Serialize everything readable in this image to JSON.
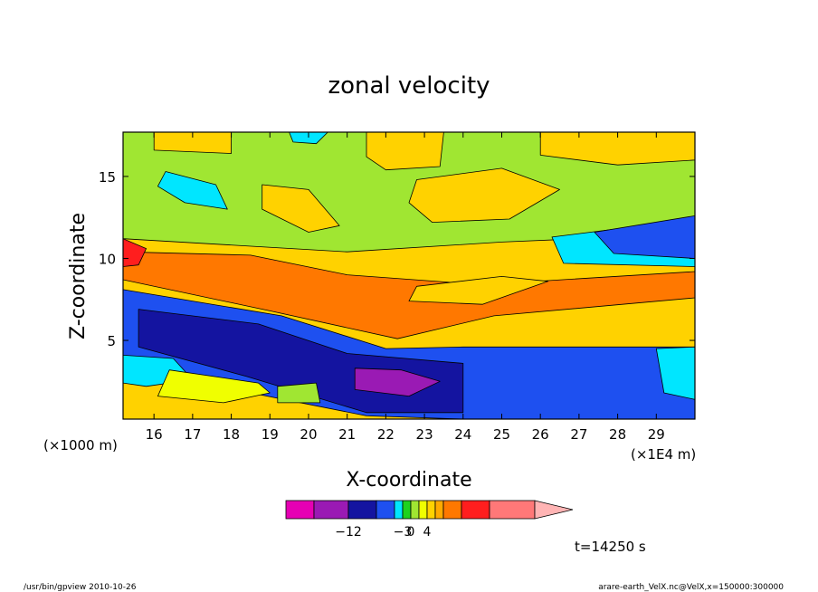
{
  "chart_data": {
    "type": "heatmap",
    "title": "zonal velocity",
    "xlabel": "X-coordinate",
    "ylabel": "Z-coordinate",
    "x_units_note": "(×1E4 m)",
    "y_units_note": "(×1000 m)",
    "xlim": [
      15.2,
      30.0
    ],
    "ylim": [
      0.2,
      17.7
    ],
    "x_ticks": [
      "16",
      "17",
      "18",
      "19",
      "20",
      "21",
      "22",
      "23",
      "24",
      "25",
      "26",
      "27",
      "28",
      "29"
    ],
    "y_ticks": [
      "5",
      "10",
      "15"
    ],
    "time_label": "t=14250 s",
    "colorbar": {
      "colors": [
        "#e600b4",
        "#9a1ab4",
        "#1414a0",
        "#1e50f0",
        "#00e6ff",
        "#1ed21e",
        "#a0e632",
        "#f0ff00",
        "#ffd200",
        "#ffaa00",
        "#ff7800",
        "#ff1e1e",
        "#ff7878",
        "#ffb4b4"
      ],
      "tick_labels": [
        "−12",
        "−3",
        "0",
        "4"
      ]
    },
    "regions": [
      {
        "level": 6,
        "points": [
          [
            15.2,
            17.7
          ],
          [
            30,
            17.7
          ],
          [
            30,
            11.5
          ],
          [
            25,
            11
          ],
          [
            21,
            10.4
          ],
          [
            15.2,
            11.2
          ]
        ]
      },
      {
        "level": 8,
        "points": [
          [
            16,
            17.7
          ],
          [
            18,
            17.7
          ],
          [
            18,
            16.4
          ],
          [
            16,
            16.6
          ]
        ]
      },
      {
        "level": 8,
        "points": [
          [
            21.5,
            17.7
          ],
          [
            23.5,
            17.7
          ],
          [
            23.4,
            15.6
          ],
          [
            22,
            15.4
          ],
          [
            21.5,
            16.2
          ]
        ]
      },
      {
        "level": 8,
        "points": [
          [
            26,
            17.7
          ],
          [
            30,
            17.7
          ],
          [
            30,
            16
          ],
          [
            28,
            15.7
          ],
          [
            26,
            16.3
          ]
        ]
      },
      {
        "level": 8,
        "points": [
          [
            18.8,
            14.5
          ],
          [
            20,
            14.2
          ],
          [
            20.8,
            12
          ],
          [
            20,
            11.6
          ],
          [
            18.8,
            13
          ]
        ]
      },
      {
        "level": 8,
        "points": [
          [
            22.8,
            14.8
          ],
          [
            25,
            15.5
          ],
          [
            26.5,
            14.2
          ],
          [
            25.2,
            12.4
          ],
          [
            23.2,
            12.2
          ],
          [
            22.6,
            13.4
          ]
        ]
      },
      {
        "level": 4,
        "points": [
          [
            16.3,
            15.3
          ],
          [
            17.6,
            14.5
          ],
          [
            17.9,
            13
          ],
          [
            16.8,
            13.4
          ],
          [
            16.1,
            14.4
          ]
        ]
      },
      {
        "level": 4,
        "points": [
          [
            19.5,
            17.7
          ],
          [
            20.5,
            17.7
          ],
          [
            20.2,
            17
          ],
          [
            19.6,
            17.1
          ]
        ]
      },
      {
        "level": 4,
        "points": [
          [
            26.3,
            11.3
          ],
          [
            30,
            12.4
          ],
          [
            30,
            9.5
          ],
          [
            26.6,
            9.7
          ]
        ]
      },
      {
        "level": 3,
        "points": [
          [
            27.4,
            11.6
          ],
          [
            30,
            12.6
          ],
          [
            30,
            10
          ],
          [
            27.9,
            10.3
          ]
        ]
      },
      {
        "level": 10,
        "points": [
          [
            15.2,
            10.4
          ],
          [
            18.5,
            10.2
          ],
          [
            21,
            9
          ],
          [
            24.5,
            8.4
          ],
          [
            30,
            9.2
          ],
          [
            30,
            7.6
          ],
          [
            24.8,
            6.5
          ],
          [
            22.3,
            5.1
          ],
          [
            19,
            6.8
          ],
          [
            15.2,
            8.7
          ]
        ]
      },
      {
        "level": 11,
        "points": [
          [
            15.2,
            11.2
          ],
          [
            15.8,
            10.6
          ],
          [
            15.6,
            9.6
          ],
          [
            15.2,
            9.5
          ]
        ]
      },
      {
        "level": 8,
        "points": [
          [
            22.6,
            7.4
          ],
          [
            24.5,
            7.2
          ],
          [
            26.2,
            8.6
          ],
          [
            25,
            8.9
          ],
          [
            22.8,
            8.3
          ]
        ]
      },
      {
        "level": 3,
        "points": [
          [
            15.2,
            8.1
          ],
          [
            19.3,
            6.5
          ],
          [
            22,
            4.5
          ],
          [
            24,
            4.6
          ],
          [
            30,
            4.6
          ],
          [
            30,
            0.2
          ],
          [
            24,
            0.2
          ],
          [
            21.5,
            0.4
          ],
          [
            18.5,
            1.8
          ],
          [
            15.2,
            3.7
          ]
        ]
      },
      {
        "level": 2,
        "points": [
          [
            15.6,
            6.9
          ],
          [
            18.7,
            6
          ],
          [
            21,
            4.2
          ],
          [
            24,
            3.6
          ],
          [
            24,
            0.6
          ],
          [
            21.5,
            0.6
          ],
          [
            18.4,
            2.8
          ],
          [
            15.6,
            4.6
          ]
        ]
      },
      {
        "level": 1,
        "points": [
          [
            21.2,
            3.3
          ],
          [
            22.4,
            3.2
          ],
          [
            23.4,
            2.5
          ],
          [
            22.6,
            1.6
          ],
          [
            21.2,
            2.0
          ]
        ]
      },
      {
        "level": 4,
        "points": [
          [
            15.2,
            4.1
          ],
          [
            16.5,
            3.9
          ],
          [
            17,
            2.6
          ],
          [
            15.8,
            2.2
          ],
          [
            15.2,
            2.4
          ]
        ]
      },
      {
        "level": 4,
        "points": [
          [
            29,
            4.5
          ],
          [
            30,
            4.6
          ],
          [
            30,
            1.4
          ],
          [
            29.2,
            1.8
          ]
        ]
      },
      {
        "level": 7,
        "points": [
          [
            16.4,
            3.2
          ],
          [
            18.7,
            2.4
          ],
          [
            19,
            1.8
          ],
          [
            17.8,
            1.2
          ],
          [
            16.1,
            1.6
          ]
        ]
      },
      {
        "level": 6,
        "points": [
          [
            19.2,
            2.2
          ],
          [
            20.2,
            2.4
          ],
          [
            20.3,
            1.2
          ],
          [
            19.2,
            1.2
          ]
        ]
      }
    ]
  },
  "footer": {
    "left": "/usr/bin/gpview   2010-10-26",
    "right": "arare-earth_VelX.nc@VelX,x=150000:300000"
  }
}
